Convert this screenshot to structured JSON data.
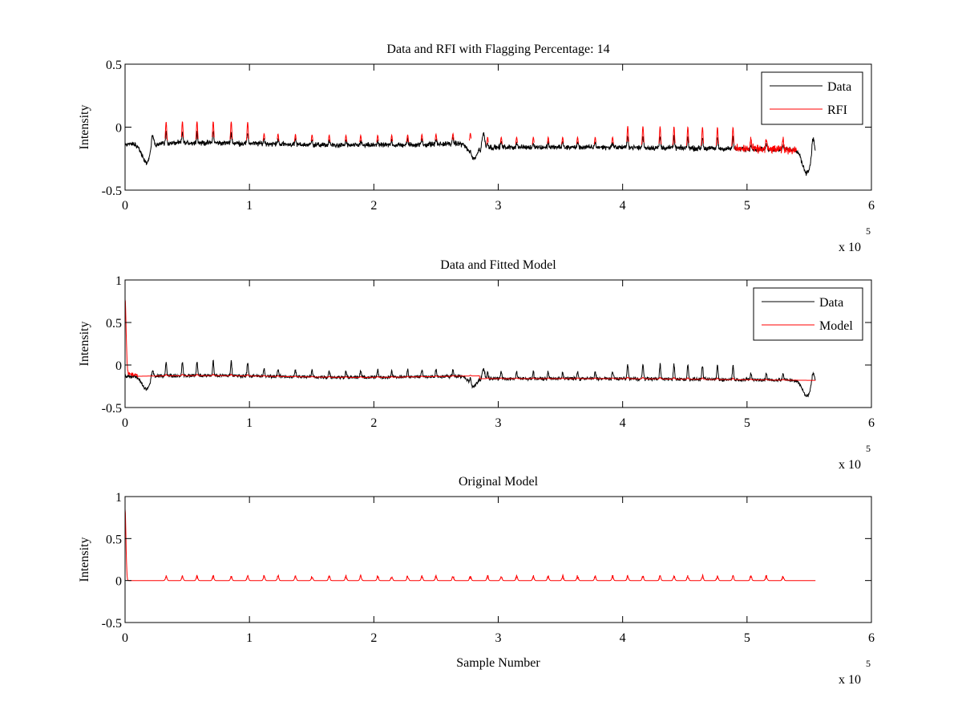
{
  "chart_data": [
    {
      "type": "line",
      "title": "Data and RFI with Flagging Percentage: 14",
      "xlabel": "",
      "ylabel": "Intensity",
      "xlim": [
        0,
        600000
      ],
      "ylim": [
        -0.5,
        0.5
      ],
      "xticks": [
        0,
        1,
        2,
        3,
        4,
        5,
        6
      ],
      "yticks": [
        -0.5,
        0,
        0.5
      ],
      "ytick_labels": [
        "-0.5",
        "0",
        "0.5"
      ],
      "x_exponent": "x 10",
      "x_exponent_power": "5",
      "grid": false,
      "legend_position": "top-right",
      "series": [
        {
          "name": "Data",
          "color": "#000000",
          "baseline": -0.13
        },
        {
          "name": "RFI",
          "color": "#ff0000",
          "approx_peak": 0.05
        }
      ]
    },
    {
      "type": "line",
      "title": "Data and Fitted Model",
      "xlabel": "",
      "ylabel": "Intensity",
      "xlim": [
        0,
        600000
      ],
      "ylim": [
        -0.5,
        1
      ],
      "xticks": [
        0,
        1,
        2,
        3,
        4,
        5,
        6
      ],
      "yticks": [
        -0.5,
        0,
        0.5,
        1
      ],
      "ytick_labels": [
        "-0.5",
        "0",
        "0.5",
        "1"
      ],
      "x_exponent": "x 10",
      "x_exponent_power": "5",
      "grid": false,
      "legend_position": "top-right",
      "series": [
        {
          "name": "Data",
          "color": "#000000",
          "baseline": -0.13
        },
        {
          "name": "Model",
          "color": "#ff0000",
          "initial_spike": 0.85
        }
      ]
    },
    {
      "type": "line",
      "title": "Original Model",
      "xlabel": "Sample Number",
      "ylabel": "Intensity",
      "xlim": [
        0,
        600000
      ],
      "ylim": [
        -0.5,
        1
      ],
      "xticks": [
        0,
        1,
        2,
        3,
        4,
        5,
        6
      ],
      "yticks": [
        -0.5,
        0,
        0.5,
        1
      ],
      "ytick_labels": [
        "-0.5",
        "0",
        "0.5",
        "1"
      ],
      "x_exponent": "x 10",
      "x_exponent_power": "5",
      "grid": false,
      "legend_position": "none",
      "series": [
        {
          "name": "Original Model",
          "color": "#ff0000",
          "initial_spike": 0.85,
          "max_spike": 0.1
        }
      ]
    }
  ]
}
